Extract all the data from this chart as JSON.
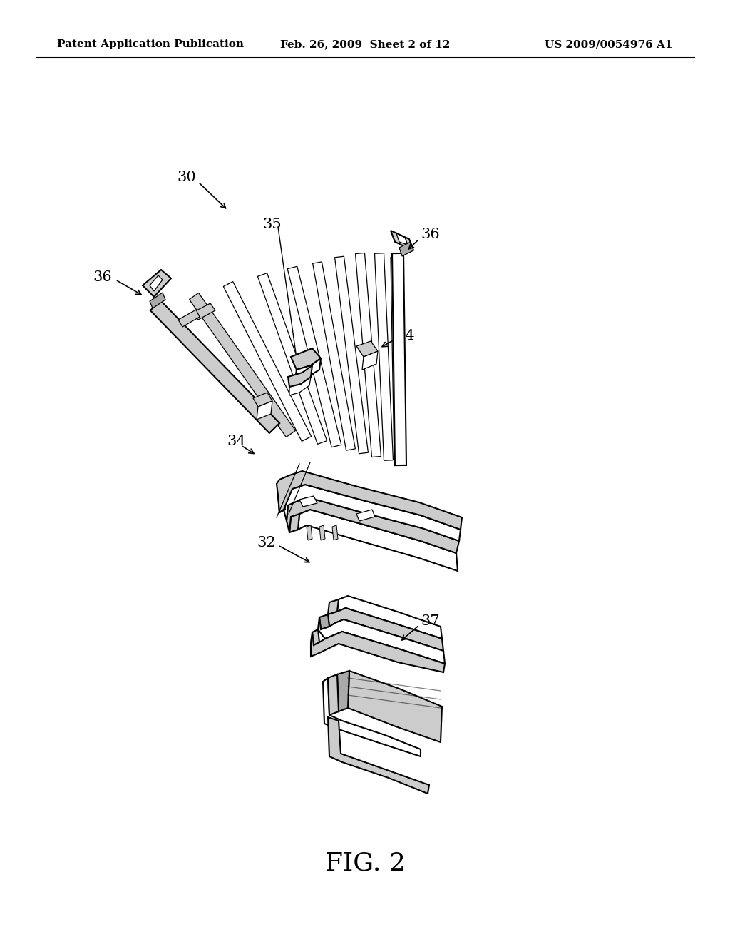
{
  "background_color": "#ffffff",
  "header_left": "Patent Application Publication",
  "header_center": "Feb. 26, 2009  Sheet 2 of 12",
  "header_right": "US 2009/0054976 A1",
  "figure_label": "FIG. 2",
  "text_color": "#000000",
  "header_fontsize": 11,
  "label_fontsize": 15,
  "fig_label_fontsize": 26
}
